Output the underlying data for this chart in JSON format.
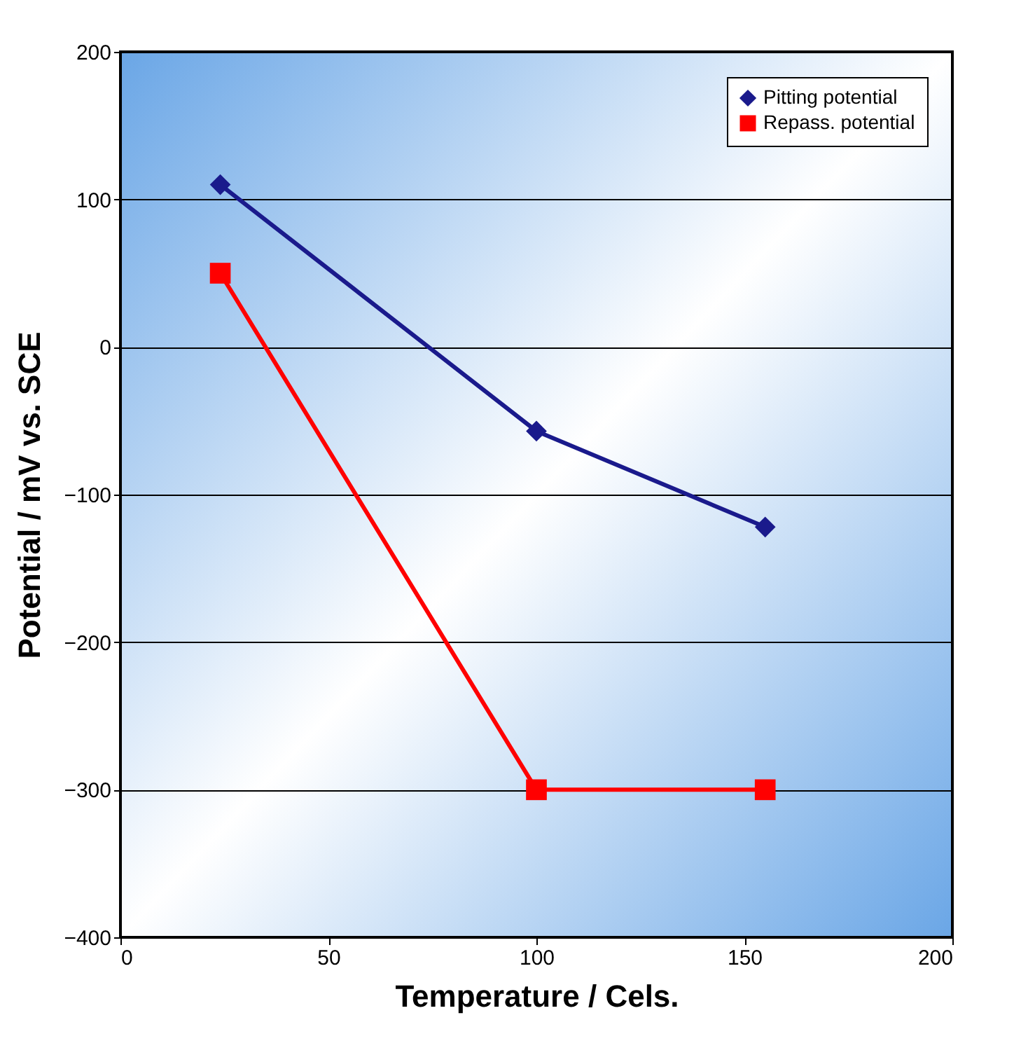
{
  "chart_data": {
    "type": "line",
    "xlabel": "Temperature / Cels.",
    "ylabel": "Potential / mV vs. SCE",
    "x": [
      24,
      100,
      155
    ],
    "series": [
      {
        "name": "Pitting potential",
        "color": "#1a1a8c",
        "values": [
          110,
          -57,
          -122
        ],
        "marker": "diamond"
      },
      {
        "name": "Repass. potential",
        "color": "#ff0000",
        "values": [
          50,
          -300,
          -300
        ],
        "marker": "square"
      }
    ],
    "xlim": [
      0,
      200
    ],
    "xticks": [
      0,
      50,
      100,
      150,
      200
    ],
    "ylim": [
      -400,
      200
    ],
    "yticks": [
      -400,
      -300,
      -200,
      -100,
      0,
      100,
      200
    ],
    "grid": "y",
    "legend": "top right"
  }
}
